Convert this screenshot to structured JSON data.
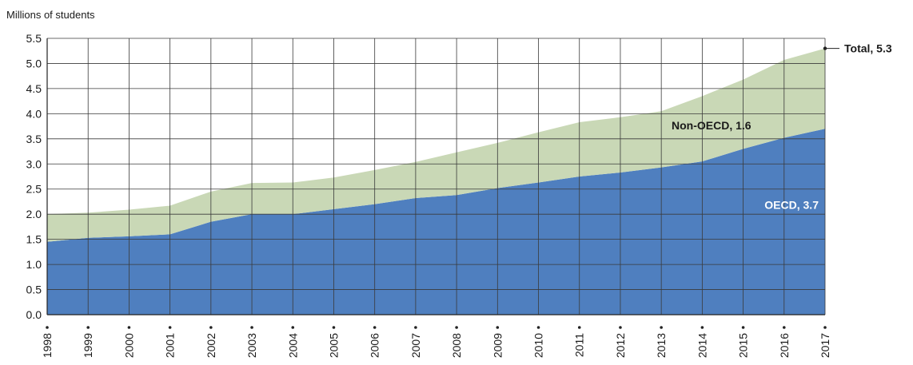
{
  "chart_data": {
    "type": "area",
    "stacked": true,
    "ylabel": "Millions of students",
    "xlabel": "",
    "ylim": [
      0,
      5.5
    ],
    "yticks": [
      "0.0",
      "0.5",
      "1.0",
      "1.5",
      "2.0",
      "2.5",
      "3.0",
      "3.5",
      "4.0",
      "4.5",
      "5.0",
      "5.5"
    ],
    "grid": true,
    "x": [
      "1998",
      "1999",
      "2000",
      "2001",
      "2002",
      "2003",
      "2004",
      "2005",
      "2006",
      "2007",
      "2008",
      "2009",
      "2010",
      "2011",
      "2012",
      "2013",
      "2014",
      "2015",
      "2016",
      "2017"
    ],
    "series": [
      {
        "name": "OECD",
        "color": "#4f7fbf",
        "values": [
          1.45,
          1.53,
          1.56,
          1.6,
          1.85,
          2.0,
          2.0,
          2.1,
          2.2,
          2.32,
          2.38,
          2.52,
          2.63,
          2.75,
          2.83,
          2.93,
          3.05,
          3.3,
          3.52,
          3.7
        ]
      },
      {
        "name": "Non-OECD",
        "color": "#c9d8b6",
        "values": [
          0.55,
          0.5,
          0.53,
          0.57,
          0.6,
          0.62,
          0.63,
          0.63,
          0.68,
          0.72,
          0.85,
          0.9,
          1.0,
          1.08,
          1.1,
          1.12,
          1.3,
          1.38,
          1.55,
          1.6
        ]
      }
    ],
    "annotations": {
      "total": "Total, 5.3",
      "non_oecd": "Non-OECD, 1.6",
      "oecd": "OECD, 3.7"
    }
  }
}
